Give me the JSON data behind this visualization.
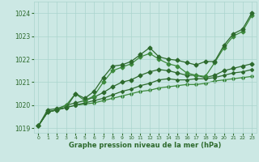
{
  "x": [
    0,
    1,
    2,
    3,
    4,
    5,
    6,
    7,
    8,
    9,
    10,
    11,
    12,
    13,
    14,
    15,
    16,
    17,
    18,
    19,
    20,
    21,
    22,
    23
  ],
  "line1": [
    1019.1,
    1019.7,
    1019.8,
    1019.9,
    1020.5,
    1020.3,
    1020.6,
    1021.2,
    1021.7,
    1021.75,
    1021.9,
    1022.2,
    1022.5,
    1022.1,
    1022.0,
    1021.95,
    1021.85,
    1021.75,
    1021.9,
    1021.9,
    1022.6,
    1023.1,
    1023.3,
    1024.0
  ],
  "line2": [
    1019.1,
    1019.7,
    1019.8,
    1020.0,
    1020.5,
    1020.2,
    1020.4,
    1021.0,
    1021.5,
    1021.65,
    1021.8,
    1022.1,
    1022.25,
    1022.0,
    1021.8,
    1021.7,
    1021.4,
    1021.3,
    1021.25,
    1021.85,
    1022.5,
    1023.0,
    1023.2,
    1023.9
  ],
  "line3": [
    1019.1,
    1019.8,
    1019.85,
    1020.0,
    1020.1,
    1020.2,
    1020.35,
    1020.55,
    1020.8,
    1021.0,
    1021.1,
    1021.3,
    1021.45,
    1021.55,
    1021.5,
    1021.4,
    1021.3,
    1021.3,
    1021.2,
    1021.3,
    1021.5,
    1021.6,
    1021.7,
    1021.8
  ],
  "line4": [
    1019.1,
    1019.7,
    1019.8,
    1019.9,
    1020.0,
    1020.1,
    1020.2,
    1020.3,
    1020.45,
    1020.6,
    1020.7,
    1020.85,
    1020.95,
    1021.1,
    1021.15,
    1021.1,
    1021.1,
    1021.15,
    1021.15,
    1021.2,
    1021.3,
    1021.4,
    1021.45,
    1021.55
  ],
  "line5": [
    1019.1,
    1019.7,
    1019.8,
    1019.9,
    1020.0,
    1020.05,
    1020.1,
    1020.2,
    1020.3,
    1020.4,
    1020.5,
    1020.6,
    1020.65,
    1020.75,
    1020.8,
    1020.85,
    1020.9,
    1020.9,
    1020.95,
    1021.05,
    1021.1,
    1021.15,
    1021.2,
    1021.25
  ],
  "line_color_dark": "#2d6a2d",
  "line_color_mid": "#3d8a3d",
  "bg_color": "#cce8e4",
  "grid_color": "#aad4ce",
  "xlabel": "Graphe pression niveau de la mer (hPa)",
  "ylim": [
    1018.8,
    1024.5
  ],
  "xlim": [
    -0.5,
    23.5
  ],
  "yticks": [
    1019,
    1020,
    1021,
    1022,
    1023,
    1024
  ],
  "xticks": [
    0,
    1,
    2,
    3,
    4,
    5,
    6,
    7,
    8,
    9,
    10,
    11,
    12,
    13,
    14,
    15,
    16,
    17,
    18,
    19,
    20,
    21,
    22,
    23
  ]
}
